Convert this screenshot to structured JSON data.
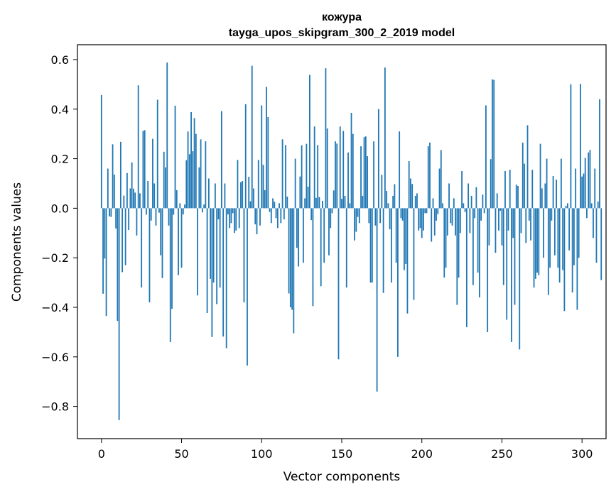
{
  "chart_data": {
    "type": "bar",
    "title": "кожура",
    "subtitle": "tayga_upos_skipgram_300_2_2019 model",
    "xlabel": "Vector components",
    "ylabel": "Components values",
    "xlim": [
      -15,
      315
    ],
    "ylim": [
      -0.93,
      0.66
    ],
    "xticks": [
      0,
      50,
      100,
      150,
      200,
      250,
      300
    ],
    "yticks": [
      -0.8,
      -0.6,
      -0.4,
      -0.2,
      0.0,
      0.2,
      0.4,
      0.6
    ],
    "xtick_labels": [
      "0",
      "50",
      "100",
      "150",
      "200",
      "250",
      "300"
    ],
    "ytick_labels": [
      "−0.8",
      "−0.6",
      "−0.4",
      "−0.2",
      "0.0",
      "0.2",
      "0.4",
      "0.6"
    ],
    "bar_color": "#1f77b4",
    "grid": false,
    "series": [
      {
        "name": "кожура",
        "values": [
          0.457,
          -0.345,
          -0.203,
          -0.435,
          0.16,
          -0.033,
          -0.035,
          0.258,
          0.136,
          -0.082,
          -0.455,
          -0.855,
          0.268,
          -0.258,
          0.051,
          -0.23,
          0.142,
          -0.088,
          0.08,
          0.185,
          0.079,
          0.063,
          -0.11,
          0.496,
          0.06,
          -0.32,
          0.312,
          0.315,
          -0.026,
          0.11,
          -0.38,
          -0.05,
          0.28,
          0.1,
          -0.07,
          0.438,
          -0.018,
          -0.19,
          -0.282,
          0.228,
          0.165,
          0.588,
          -0.07,
          -0.54,
          -0.406,
          -0.026,
          0.414,
          0.073,
          -0.27,
          0.02,
          -0.24,
          -0.025,
          0.015,
          0.194,
          0.31,
          0.218,
          0.388,
          0.23,
          0.364,
          0.3,
          -0.352,
          0.165,
          0.278,
          -0.017,
          0.015,
          0.27,
          -0.423,
          0.12,
          -0.285,
          -0.52,
          -0.3,
          0.1,
          -0.387,
          -0.045,
          -0.32,
          0.392,
          -0.518,
          0.1,
          -0.565,
          -0.025,
          -0.08,
          -0.06,
          -0.02,
          -0.1,
          -0.09,
          0.195,
          -0.08,
          0.105,
          0.11,
          -0.38,
          0.42,
          -0.635,
          0.127,
          0.028,
          0.575,
          0.08,
          -0.065,
          -0.105,
          0.195,
          -0.07,
          0.415,
          0.175,
          0.073,
          0.49,
          0.368,
          -0.015,
          -0.06,
          0.04,
          0.026,
          -0.04,
          -0.08,
          0.02,
          -0.06,
          0.278,
          -0.045,
          0.255,
          0.047,
          -0.344,
          -0.4,
          -0.41,
          -0.505,
          0.2,
          -0.16,
          -0.235,
          0.128,
          0.254,
          -0.22,
          0.04,
          0.26,
          0.087,
          0.538,
          -0.048,
          -0.395,
          0.33,
          0.042,
          0.255,
          0.045,
          -0.315,
          0.03,
          -0.22,
          0.565,
          0.322,
          -0.19,
          -0.08,
          -0.02,
          0.072,
          0.27,
          0.261,
          -0.61,
          0.33,
          0.038,
          0.312,
          0.05,
          -0.32,
          0.225,
          0.02,
          0.385,
          0.3,
          -0.13,
          -0.095,
          -0.035,
          -0.06,
          0.25,
          0.05,
          0.287,
          0.29,
          0.21,
          -0.06,
          -0.3,
          -0.3,
          0.27,
          -0.07,
          -0.74,
          0.4,
          -0.06,
          0.135,
          -0.342,
          0.568,
          0.07,
          0.02,
          -0.085,
          -0.3,
          0.05,
          0.097,
          -0.22,
          -0.6,
          0.31,
          -0.04,
          -0.05,
          -0.25,
          -0.225,
          -0.425,
          0.19,
          0.12,
          0.098,
          -0.37,
          0.05,
          0.06,
          -0.09,
          -0.08,
          -0.12,
          -0.09,
          -0.02,
          -0.02,
          0.25,
          0.265,
          -0.135,
          0.04,
          -0.11,
          -0.05,
          -0.024,
          0.16,
          0.235,
          0.02,
          -0.28,
          -0.24,
          -0.11,
          0.1,
          -0.06,
          -0.07,
          0.04,
          -0.11,
          -0.39,
          -0.28,
          -0.1,
          0.15,
          0.02,
          -0.015,
          -0.48,
          0.1,
          -0.1,
          0.05,
          -0.31,
          -0.04,
          0.085,
          -0.26,
          -0.36,
          -0.05,
          0.055,
          -0.02,
          0.415,
          -0.5,
          -0.15,
          0.198,
          0.52,
          0.518,
          -0.18,
          0.06,
          -0.09,
          -0.01,
          -0.15,
          -0.31,
          0.15,
          -0.45,
          -0.09,
          0.155,
          -0.54,
          -0.12,
          -0.39,
          0.095,
          0.09,
          -0.57,
          -0.1,
          0.265,
          0.18,
          -0.14,
          0.335,
          -0.05,
          -0.13,
          0.155,
          -0.32,
          -0.285,
          -0.26,
          -0.27,
          0.26,
          0.08,
          -0.2,
          0.1,
          0.2,
          -0.35,
          -0.24,
          -0.05,
          0.13,
          -0.19,
          0.115,
          -0.24,
          -0.3,
          0.2,
          -0.25,
          -0.415,
          0.01,
          0.02,
          -0.17,
          0.5,
          -0.34,
          -0.23,
          0.16,
          -0.41,
          -0.2,
          0.502,
          0.128,
          0.14,
          0.203,
          -0.04,
          0.225,
          0.235,
          0.02,
          -0.12,
          0.16,
          -0.22,
          0.027,
          0.44,
          -0.29
        ]
      }
    ]
  }
}
